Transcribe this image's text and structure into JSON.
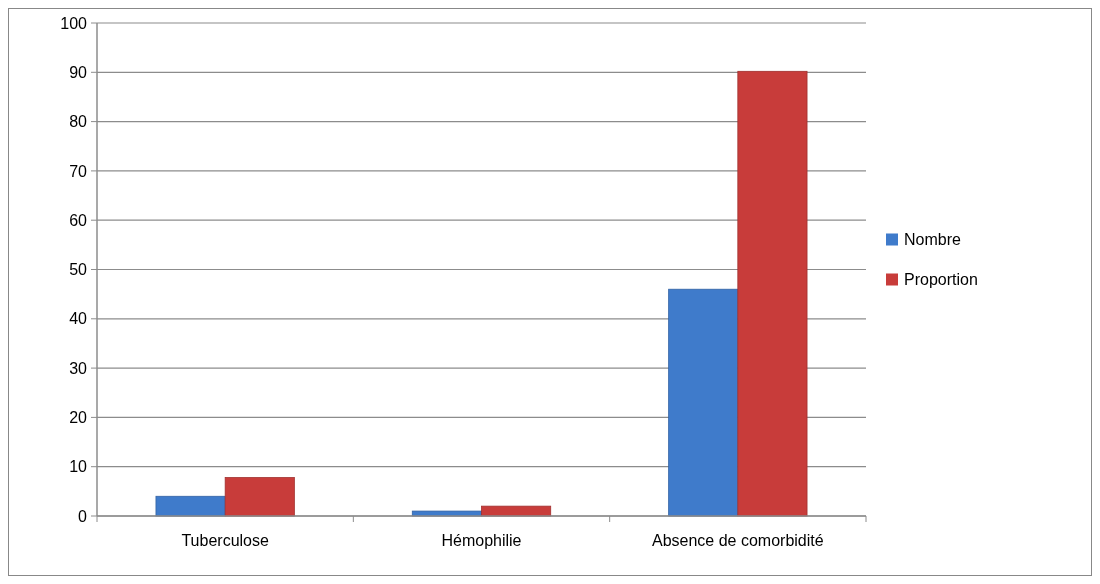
{
  "chart_data": {
    "type": "bar",
    "categories": [
      "Tuberculose",
      "Hémophilie",
      "Absence de comorbidité"
    ],
    "series": [
      {
        "name": "Nombre",
        "color": "#3f7bcb",
        "values": [
          4,
          1,
          46
        ]
      },
      {
        "name": "Proportion",
        "color": "#c83c3a",
        "values": [
          7.8,
          2,
          90.2
        ]
      }
    ],
    "ylim": [
      0,
      100
    ],
    "yticks": [
      0,
      10,
      20,
      30,
      40,
      50,
      60,
      70,
      80,
      90,
      100
    ],
    "grid": "y",
    "legend": "right"
  }
}
